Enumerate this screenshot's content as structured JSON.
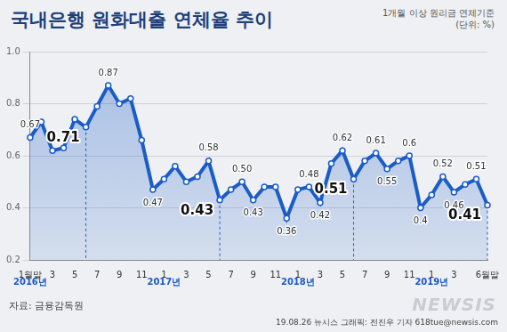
{
  "chart_data": {
    "type": "line",
    "title": "국내은행 원화대출 연체율 추이",
    "subtitle": "1개월 이상 원리금 연체기준",
    "unit_note": "(단위: %)",
    "source": "자료: 금융감독원",
    "credit": "19.08.26 뉴시스 그래픽: 전진우 기자 618tue@newsis.com",
    "logo": "NEWSIS",
    "categories": [
      "1월말",
      null,
      "3",
      null,
      "5",
      null,
      "7",
      null,
      "9",
      null,
      "11",
      null,
      "1",
      null,
      "3",
      null,
      "5",
      null,
      "7",
      null,
      "9",
      null,
      "11",
      null,
      "1",
      null,
      "3",
      null,
      "5",
      null,
      "7",
      null,
      "9",
      null,
      "11",
      null,
      "1",
      null,
      "3",
      null,
      null,
      "6월말"
    ],
    "year_labels": [
      {
        "label": "2016년",
        "at": 0
      },
      {
        "label": "2017년",
        "at": 12
      },
      {
        "label": "2018년",
        "at": 24
      },
      {
        "label": "2019년",
        "at": 36
      }
    ],
    "values": [
      0.67,
      0.73,
      0.62,
      0.63,
      0.74,
      0.71,
      0.79,
      0.87,
      0.8,
      0.82,
      0.66,
      0.47,
      0.51,
      0.56,
      0.5,
      0.52,
      0.58,
      0.43,
      0.47,
      0.5,
      0.43,
      0.48,
      0.48,
      0.36,
      0.47,
      0.48,
      0.42,
      0.57,
      0.62,
      0.51,
      0.58,
      0.61,
      0.55,
      0.58,
      0.6,
      0.4,
      0.45,
      0.52,
      0.46,
      0.49,
      0.51,
      0.41
    ],
    "value_labels": [
      "0.67",
      null,
      null,
      null,
      null,
      null,
      null,
      "0.87",
      null,
      null,
      null,
      "0.47",
      null,
      null,
      null,
      null,
      "0.58",
      null,
      null,
      "0.50",
      "0.43",
      null,
      null,
      "0.36",
      null,
      "0.48",
      "0.42",
      null,
      "0.62",
      null,
      null,
      "0.61",
      "0.55",
      null,
      "0.6",
      "0.4",
      null,
      "0.52",
      "0.46",
      null,
      "0.51",
      null
    ],
    "annotations": [
      {
        "x_index": 5,
        "label": "0.71"
      },
      {
        "x_index": 17,
        "label": "0.43"
      },
      {
        "x_index": 29,
        "label": "0.51"
      },
      {
        "x_index": 41,
        "label": "0.41"
      }
    ],
    "data_labels": true,
    "color": "#1a5cc8",
    "marker": "circle",
    "ylim": [
      0.2,
      1.0
    ],
    "yticks": [
      0.2,
      0.4,
      0.6,
      0.8,
      {
        "value": 1,
        "label": "1.0"
      }
    ],
    "grid": true
  }
}
